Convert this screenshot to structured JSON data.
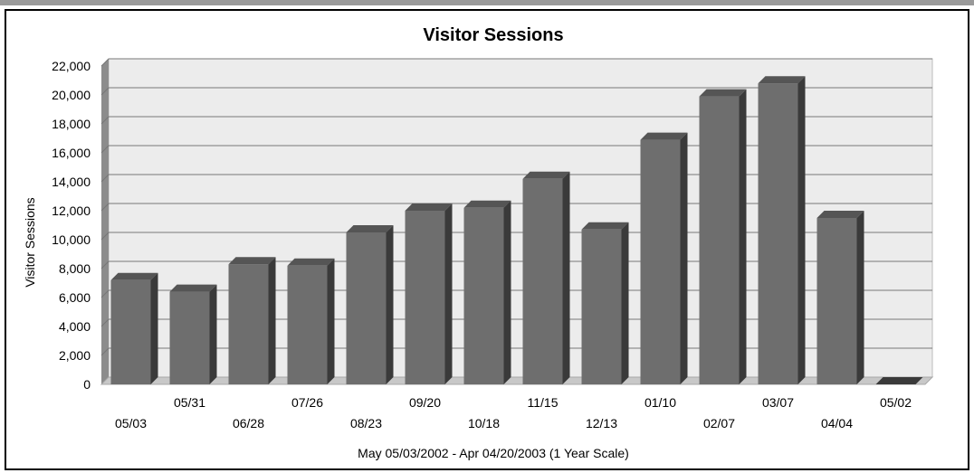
{
  "chart_data": {
    "type": "bar",
    "title": "Visitor Sessions",
    "ylabel": "Visitor Sessions",
    "xlabel": "May  05/03/2002 - Apr 04/20/2003 (1 Year Scale)",
    "categories": [
      "05/03",
      "05/31",
      "06/28",
      "07/26",
      "08/23",
      "09/20",
      "10/18",
      "11/15",
      "12/13",
      "01/10",
      "02/07",
      "03/07",
      "04/04",
      "05/02"
    ],
    "values": [
      7200,
      6400,
      8300,
      8200,
      10500,
      12000,
      12200,
      14200,
      10700,
      16900,
      19900,
      20800,
      11500,
      0
    ],
    "ylim": [
      0,
      22000
    ],
    "yticks": [
      "22,000",
      "20,000",
      "18,000",
      "16,000",
      "14,000",
      "12,000",
      "10,000",
      "8,000",
      "6,000",
      "4,000",
      "2,000",
      "0"
    ],
    "grid": true,
    "bar_color": "#6e6e6e",
    "background": "#ececec"
  }
}
